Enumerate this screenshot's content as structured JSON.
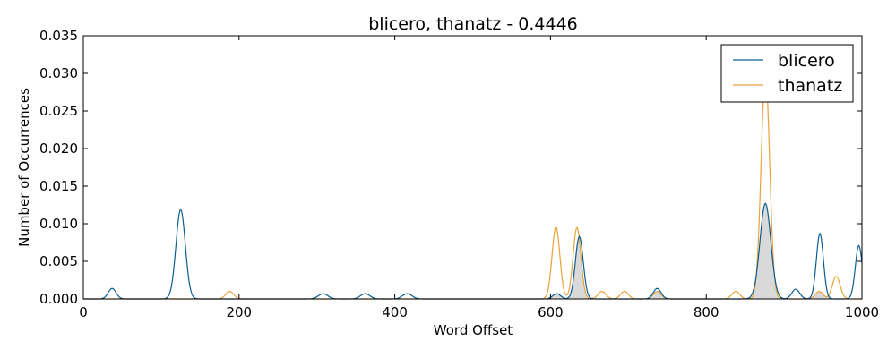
{
  "chart_data": {
    "type": "line",
    "title": "blicero, thanatz - 0.4446",
    "xlabel": "Word Offset",
    "ylabel": "Number of Occurrences",
    "xlim": [
      0,
      1000
    ],
    "ylim": [
      0,
      0.035
    ],
    "x_ticks": [
      "0",
      "200",
      "400",
      "600",
      "800",
      "1000"
    ],
    "y_ticks": [
      "0.000",
      "0.005",
      "0.010",
      "0.015",
      "0.020",
      "0.025",
      "0.030",
      "0.035"
    ],
    "grid": false,
    "legend_position": "top-right",
    "overlap_fill_color": "#d9d9d9",
    "series": [
      {
        "name": "blicero",
        "color": "#0b5d92",
        "peaks": [
          {
            "x": 37,
            "y": 0.0014,
            "width": 5
          },
          {
            "x": 125,
            "y": 0.0119,
            "width": 6
          },
          {
            "x": 308,
            "y": 0.0007,
            "width": 6
          },
          {
            "x": 362,
            "y": 0.0007,
            "width": 6
          },
          {
            "x": 416,
            "y": 0.0007,
            "width": 6
          },
          {
            "x": 608,
            "y": 0.0007,
            "width": 5
          },
          {
            "x": 637,
            "y": 0.0083,
            "width": 5
          },
          {
            "x": 737,
            "y": 0.0014,
            "width": 5
          },
          {
            "x": 876,
            "y": 0.0127,
            "width": 7
          },
          {
            "x": 915,
            "y": 0.0013,
            "width": 5
          },
          {
            "x": 946,
            "y": 0.0087,
            "width": 4.5
          },
          {
            "x": 996,
            "y": 0.0071,
            "width": 4.5
          }
        ]
      },
      {
        "name": "thanatz",
        "color": "#e8a33a",
        "peaks": [
          {
            "x": 188,
            "y": 0.001,
            "width": 5
          },
          {
            "x": 607,
            "y": 0.0096,
            "width": 5
          },
          {
            "x": 634,
            "y": 0.0095,
            "width": 5
          },
          {
            "x": 666,
            "y": 0.001,
            "width": 5
          },
          {
            "x": 695,
            "y": 0.001,
            "width": 5
          },
          {
            "x": 737,
            "y": 0.001,
            "width": 5
          },
          {
            "x": 838,
            "y": 0.001,
            "width": 5
          },
          {
            "x": 876,
            "y": 0.03,
            "width": 5.5
          },
          {
            "x": 945,
            "y": 0.001,
            "width": 5
          },
          {
            "x": 967,
            "y": 0.003,
            "width": 5
          }
        ]
      }
    ]
  }
}
